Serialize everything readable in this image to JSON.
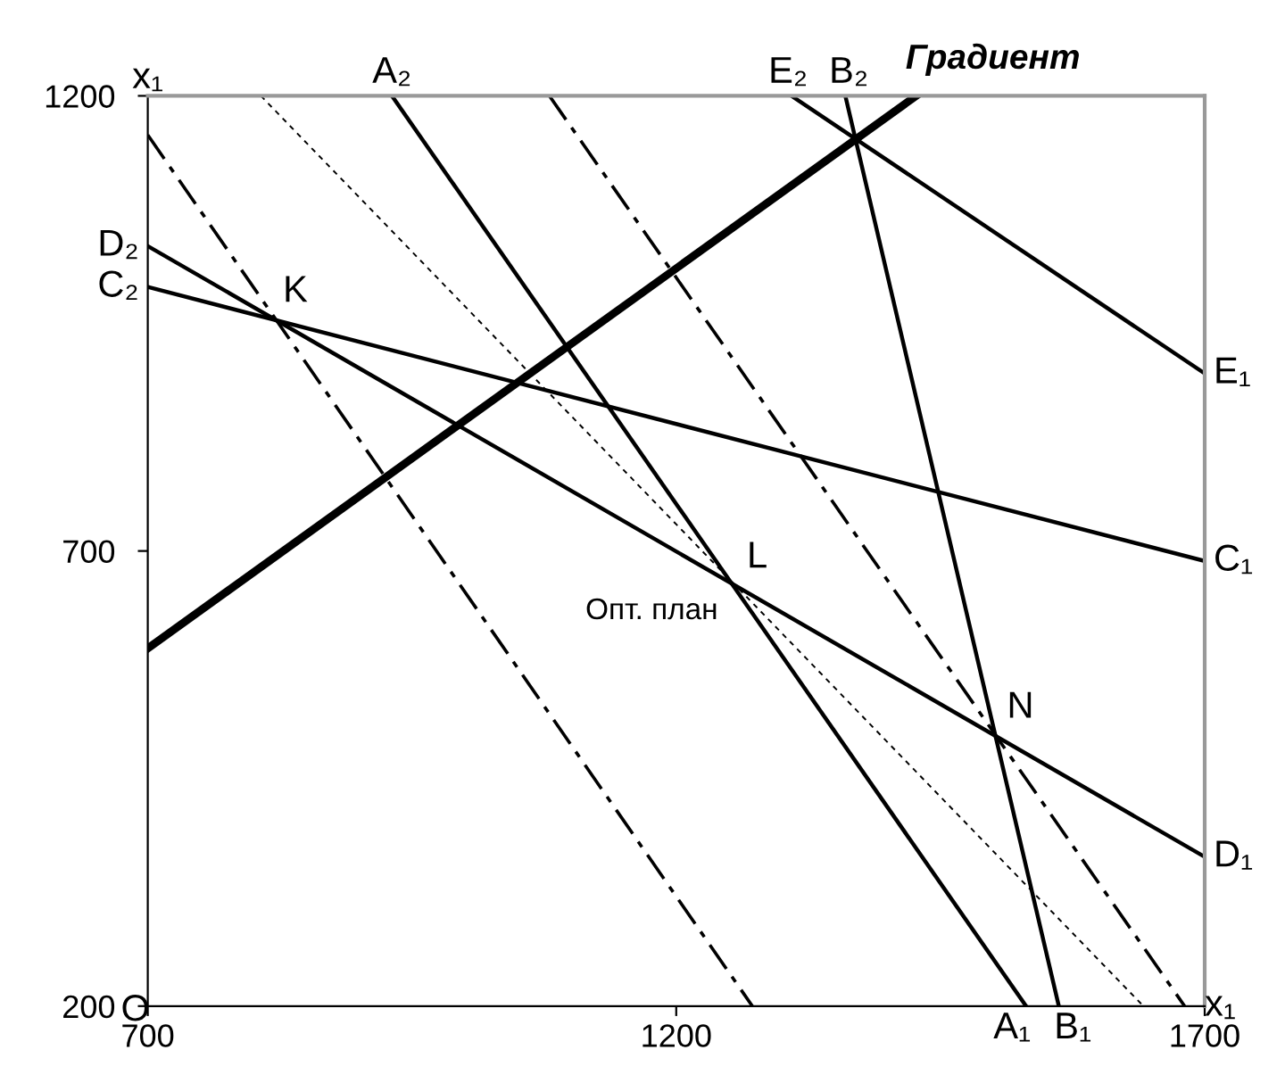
{
  "chart_data": {
    "type": "line",
    "xlabel": "x₁",
    "ylabel": "x₁",
    "xlim": [
      700,
      1700
    ],
    "ylim": [
      200,
      1200
    ],
    "xticks": [
      700,
      1200,
      1700
    ],
    "yticks": [
      200,
      700,
      1200
    ],
    "grid": false,
    "legend": false,
    "marker": "none",
    "series": [
      {
        "color": "#000000",
        "x": [
          931,
          1531
        ],
        "values": [
          1200,
          200
        ],
        "line_style": "solid"
      },
      {
        "color": "#000000",
        "x": [
          1360,
          1562
        ],
        "values": [
          1200,
          200
        ],
        "line_style": "solid"
      },
      {
        "color": "#000000",
        "x": [
          1309,
          1700
        ],
        "values": [
          1200,
          895
        ],
        "line_style": "solid"
      },
      {
        "color": "#000000",
        "x": [
          700,
          1700
        ],
        "values": [
          990,
          689
        ],
        "line_style": "solid"
      },
      {
        "color": "#000000",
        "x": [
          700,
          1700
        ],
        "values": [
          1035,
          364
        ],
        "line_style": "solid"
      },
      {
        "name": "Градиент",
        "color": "#000000",
        "x": [
          700,
          1427
        ],
        "values": [
          593,
          1200
        ],
        "line_style": "solid"
      },
      {
        "color": "#000000",
        "x": [
          700,
          1272
        ],
        "values": [
          1157,
          200
        ],
        "line_style": "dashed"
      },
      {
        "color": "#000000",
        "x": [
          807,
          1642
        ],
        "values": [
          1200,
          200
        ],
        "line_style": "dotted"
      },
      {
        "color": "#000000",
        "x": [
          1080,
          1681
        ],
        "values": [
          1200,
          200
        ],
        "line_style": "dashed"
      }
    ],
    "annotations": [
      {
        "text": "A₂",
        "x": 931,
        "y": 1200
      },
      {
        "text": "E₂",
        "x": 1309,
        "y": 1200
      },
      {
        "text": "B₂",
        "x": 1360,
        "y": 1200
      },
      {
        "text": "D₂",
        "x": 700,
        "y": 1035
      },
      {
        "text": "C₂",
        "x": 700,
        "y": 990
      },
      {
        "text": "E₁",
        "x": 1700,
        "y": 895
      },
      {
        "text": "C₁",
        "x": 1700,
        "y": 689
      },
      {
        "text": "D₁",
        "x": 1700,
        "y": 364
      },
      {
        "text": "A₁",
        "x": 1531,
        "y": 200
      },
      {
        "text": "B₁",
        "x": 1562,
        "y": 200
      },
      {
        "text": "K",
        "x": 816,
        "y": 955
      },
      {
        "text": "L",
        "x": 1253,
        "y": 663
      },
      {
        "text": "N",
        "x": 1502,
        "y": 498
      },
      {
        "text": "Опт. план",
        "x": 1253,
        "y": 663
      },
      "O"
    ]
  }
}
